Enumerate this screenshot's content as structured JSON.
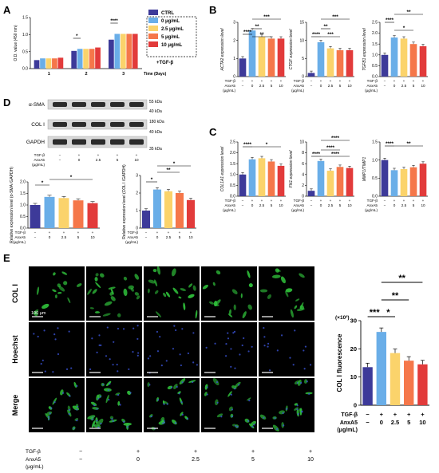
{
  "panels": {
    "A": {
      "letter": "A"
    },
    "B": {
      "letter": "B"
    },
    "C": {
      "letter": "C"
    },
    "D": {
      "letter": "D"
    },
    "E": {
      "letter": "E"
    }
  },
  "colors": {
    "ctrl": "#3d3a99",
    "c0": "#6aaee8",
    "c25": "#fbd36b",
    "c5": "#f5774a",
    "c10": "#e23b3b"
  },
  "legendA": {
    "items": [
      "CTRL",
      "0 μg/mL",
      "2.5 μg/mL",
      "5 μg/mL",
      "10 μg/mL"
    ],
    "footer": "+TGF-β"
  },
  "treatment": {
    "tgf_label": "TGF-β",
    "anx_label": "AnxA5",
    "unit_label": "(μg/mL)",
    "tgf_values": [
      "−",
      "+",
      "+",
      "+",
      "+"
    ],
    "anx_values": [
      "−",
      "0",
      "2.5",
      "5",
      "10"
    ]
  },
  "westernD": {
    "bands": [
      "α-SMA",
      "COL I",
      "GAPDH"
    ],
    "kda": [
      "55 kDa",
      "40 kDa",
      "180 kDa",
      "40 kDa",
      "35 kDa"
    ]
  },
  "microscopyE": {
    "rows": [
      "COL I",
      "Hoechst",
      "Merge"
    ],
    "scale_bar": "100 μm",
    "tgf_label": "TGF-β",
    "anx_label": "AnxA5",
    "unit_label": "(μg/mL)",
    "tgf_values": [
      "−",
      "+",
      "+",
      "+",
      "+"
    ],
    "anx_values": [
      "−",
      "0",
      "2.5",
      "5",
      "10"
    ]
  },
  "chart_data": [
    {
      "id": "A",
      "type": "bar",
      "ylabel": "O.D. value (450 nm)",
      "xlabel": "Time (Days)",
      "categories": [
        "1",
        "2",
        "3"
      ],
      "ylim": [
        0,
        1.5
      ],
      "yticks": [
        "0.0",
        "0.5",
        "1.0",
        "1.5"
      ],
      "series": [
        {
          "name": "CTRL",
          "values": [
            0.25,
            0.52,
            0.85
          ]
        },
        {
          "name": "0 μg/mL",
          "values": [
            0.3,
            0.58,
            1.02
          ]
        },
        {
          "name": "2.5 μg/mL",
          "values": [
            0.3,
            0.58,
            1.02
          ]
        },
        {
          "name": "5 μg/mL",
          "values": [
            0.3,
            0.58,
            1.02
          ]
        },
        {
          "name": "10 μg/mL",
          "values": [
            0.32,
            0.62,
            1.02
          ]
        }
      ],
      "annotations": [
        "*",
        "****"
      ]
    },
    {
      "id": "B1",
      "type": "bar",
      "ylabel": "ACTA2 expression level",
      "ylim": [
        0,
        3
      ],
      "yticks": [
        "0",
        "1",
        "2",
        "3"
      ],
      "values": [
        1.0,
        2.55,
        2.2,
        2.1,
        2.1
      ],
      "sig": [
        "****",
        "**",
        "**",
        "***"
      ]
    },
    {
      "id": "B2",
      "type": "bar",
      "ylabel": "CTGF expression level",
      "ylim": [
        0,
        15
      ],
      "yticks": [
        "0",
        "5",
        "10",
        "15"
      ],
      "values": [
        1.0,
        9.5,
        7.8,
        7.3,
        7.3
      ],
      "sig": [
        "****",
        "**",
        "***",
        "***"
      ]
    },
    {
      "id": "B3",
      "type": "bar",
      "ylabel": "TGFB1 expression level",
      "ylim": [
        0,
        2.5
      ],
      "yticks": [
        "0.0",
        "0.5",
        "1.0",
        "1.5",
        "2.0",
        "2.5"
      ],
      "values": [
        1.0,
        1.8,
        1.75,
        1.5,
        1.4
      ],
      "sig": [
        "****",
        "*",
        "**"
      ]
    },
    {
      "id": "C1",
      "type": "bar",
      "ylabel": "COL1A1 expression level",
      "ylim": [
        0,
        2.5
      ],
      "yticks": [
        "0.0",
        "0.5",
        "1.0",
        "1.5",
        "2.0",
        "2.5"
      ],
      "values": [
        1.0,
        1.7,
        1.75,
        1.6,
        1.4
      ],
      "sig": [
        "****",
        "*"
      ]
    },
    {
      "id": "C2",
      "type": "bar",
      "ylabel": "FN1 expression level",
      "ylim": [
        0,
        10
      ],
      "yticks": [
        "0",
        "2",
        "4",
        "6",
        "8",
        "10"
      ],
      "values": [
        1.0,
        6.5,
        4.7,
        5.4,
        5.2
      ],
      "sig": [
        "****",
        "****",
        "****",
        "****"
      ]
    },
    {
      "id": "C3",
      "type": "bar",
      "ylabel": "MMP1/TIMP1",
      "ylim": [
        0,
        1.5
      ],
      "yticks": [
        "0.0",
        "0.5",
        "1.0",
        "1.5"
      ],
      "values": [
        1.0,
        0.72,
        0.75,
        0.8,
        0.9
      ],
      "sig": [
        "****",
        "**"
      ]
    },
    {
      "id": "D1",
      "type": "bar",
      "ylabel": "Relative expression level (α-SMA /GAPDH)",
      "ylim": [
        0,
        2.0
      ],
      "yticks": [
        "0.0",
        "0.5",
        "1.0",
        "1.5",
        "2.0"
      ],
      "values": [
        1.0,
        1.35,
        1.3,
        1.2,
        1.08
      ],
      "sig": [
        "*",
        "*"
      ]
    },
    {
      "id": "D2",
      "type": "bar",
      "ylabel": "Relative expression level (COL I /GAPDH)",
      "ylim": [
        0,
        3
      ],
      "yticks": [
        "0",
        "1",
        "2",
        "3"
      ],
      "values": [
        1.0,
        2.2,
        2.1,
        2.0,
        1.6
      ],
      "sig": [
        "*",
        "**",
        "*"
      ]
    },
    {
      "id": "E",
      "type": "bar",
      "ylabel": "COL Ⅰ fluorescence",
      "unit": "(×10³)",
      "ylim": [
        0,
        30
      ],
      "yticks": [
        "0",
        "10",
        "20",
        "30"
      ],
      "values": [
        13.5,
        26.0,
        18.5,
        15.8,
        14.5
      ],
      "sig": [
        "***",
        "*",
        "**",
        "**"
      ]
    }
  ]
}
